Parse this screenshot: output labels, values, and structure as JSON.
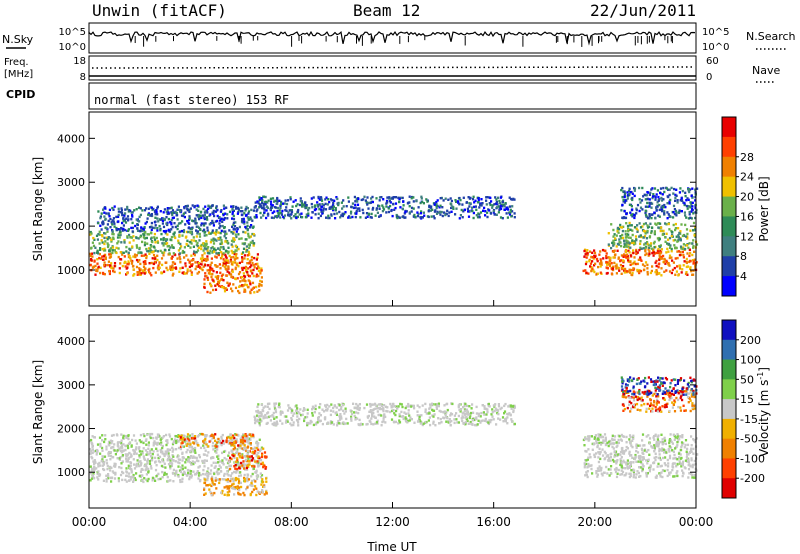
{
  "header": {
    "station": "Unwin (fitACF)",
    "beam": "Beam 12",
    "date": "22/Jun/2011"
  },
  "nsky_panel": {
    "left_label": "N.Sky",
    "ticks": [
      "10^5",
      "10^0"
    ],
    "right_label": "N.Search",
    "right_ticks": [
      "10^5",
      "10^0"
    ]
  },
  "freq_panel": {
    "left_label_1": "Freq.",
    "left_label_2": "[MHz]",
    "left_ticks": [
      "18",
      "8"
    ],
    "right_label": "Nave",
    "right_ticks": [
      "60",
      "0"
    ]
  },
  "cpid": {
    "label": "CPID",
    "text": "normal (fast stereo) 153 RF"
  },
  "chart_data": [
    {
      "type": "heatmap",
      "quantity": "Power",
      "ylabel": "Slant Range [km]",
      "ylim": [
        180,
        4600
      ],
      "yticks": [
        "1000",
        "2000",
        "3000",
        "4000"
      ],
      "xlim": [
        0,
        24
      ],
      "colorbar": {
        "label": "Power [dB]",
        "ticks": [
          "4",
          "8",
          "12",
          "16",
          "20",
          "24",
          "28"
        ],
        "colors": [
          "#0000ff",
          "#1f3fa8",
          "#3f7f7f",
          "#2e8b57",
          "#6ab04a",
          "#f0c000",
          "#f08000",
          "#ff4000",
          "#e80000"
        ]
      },
      "regions": [
        {
          "t0": 0.0,
          "t1": 6.8,
          "r0": 900,
          "r1": 1400,
          "level": "high"
        },
        {
          "t0": 0.0,
          "t1": 6.5,
          "r0": 1400,
          "r1": 1900,
          "level": "mid"
        },
        {
          "t0": 0.3,
          "t1": 6.5,
          "r0": 1900,
          "r1": 2500,
          "level": "low"
        },
        {
          "t0": 4.5,
          "t1": 6.8,
          "r0": 500,
          "r1": 900,
          "level": "high"
        },
        {
          "t0": 6.5,
          "t1": 16.8,
          "r0": 2200,
          "r1": 2700,
          "level": "low"
        },
        {
          "t0": 19.5,
          "t1": 24.0,
          "r0": 900,
          "r1": 1500,
          "level": "high"
        },
        {
          "t0": 20.5,
          "t1": 24.0,
          "r0": 1500,
          "r1": 2100,
          "level": "mid"
        },
        {
          "t0": 21.0,
          "t1": 24.0,
          "r0": 2200,
          "r1": 2900,
          "level": "low"
        }
      ]
    },
    {
      "type": "heatmap",
      "quantity": "Velocity",
      "ylabel": "Slant Range [km]",
      "ylim": [
        180,
        4600
      ],
      "yticks": [
        "1000",
        "2000",
        "3000",
        "4000"
      ],
      "xlim": [
        0,
        24
      ],
      "colorbar": {
        "label": "Velocity [m s",
        "label_sup": "-1",
        "label_end": "]",
        "ticks": [
          "200",
          "100",
          "50",
          "15",
          "-15",
          "-50",
          "-100",
          "-200"
        ],
        "colors": [
          "#1010c0",
          "#2f6fb0",
          "#3fa040",
          "#7fd04a",
          "#c8c8c8",
          "#f0b000",
          "#f08000",
          "#ff4000",
          "#e00000"
        ]
      },
      "regions": [
        {
          "t0": 0.0,
          "t1": 6.8,
          "r0": 800,
          "r1": 1900,
          "level": "grey"
        },
        {
          "t0": 3.5,
          "t1": 6.5,
          "r0": 1600,
          "r1": 1900,
          "level": "neg"
        },
        {
          "t0": 5.5,
          "t1": 7.0,
          "r0": 1100,
          "r1": 1600,
          "level": "neg"
        },
        {
          "t0": 4.5,
          "t1": 7.0,
          "r0": 500,
          "r1": 900,
          "level": "slow"
        },
        {
          "t0": 6.5,
          "t1": 16.8,
          "r0": 2100,
          "r1": 2600,
          "level": "grey"
        },
        {
          "t0": 19.5,
          "t1": 24.0,
          "r0": 900,
          "r1": 1900,
          "level": "grey"
        },
        {
          "t0": 21.0,
          "t1": 24.0,
          "r0": 2400,
          "r1": 2900,
          "level": "neg"
        },
        {
          "t0": 21.0,
          "t1": 24.0,
          "r0": 2800,
          "r1": 3200,
          "level": "pos"
        }
      ]
    }
  ],
  "x_axis": {
    "ticks": [
      "00:00",
      "04:00",
      "08:00",
      "12:00",
      "16:00",
      "20:00",
      "00:00"
    ],
    "label": "Time UT"
  }
}
